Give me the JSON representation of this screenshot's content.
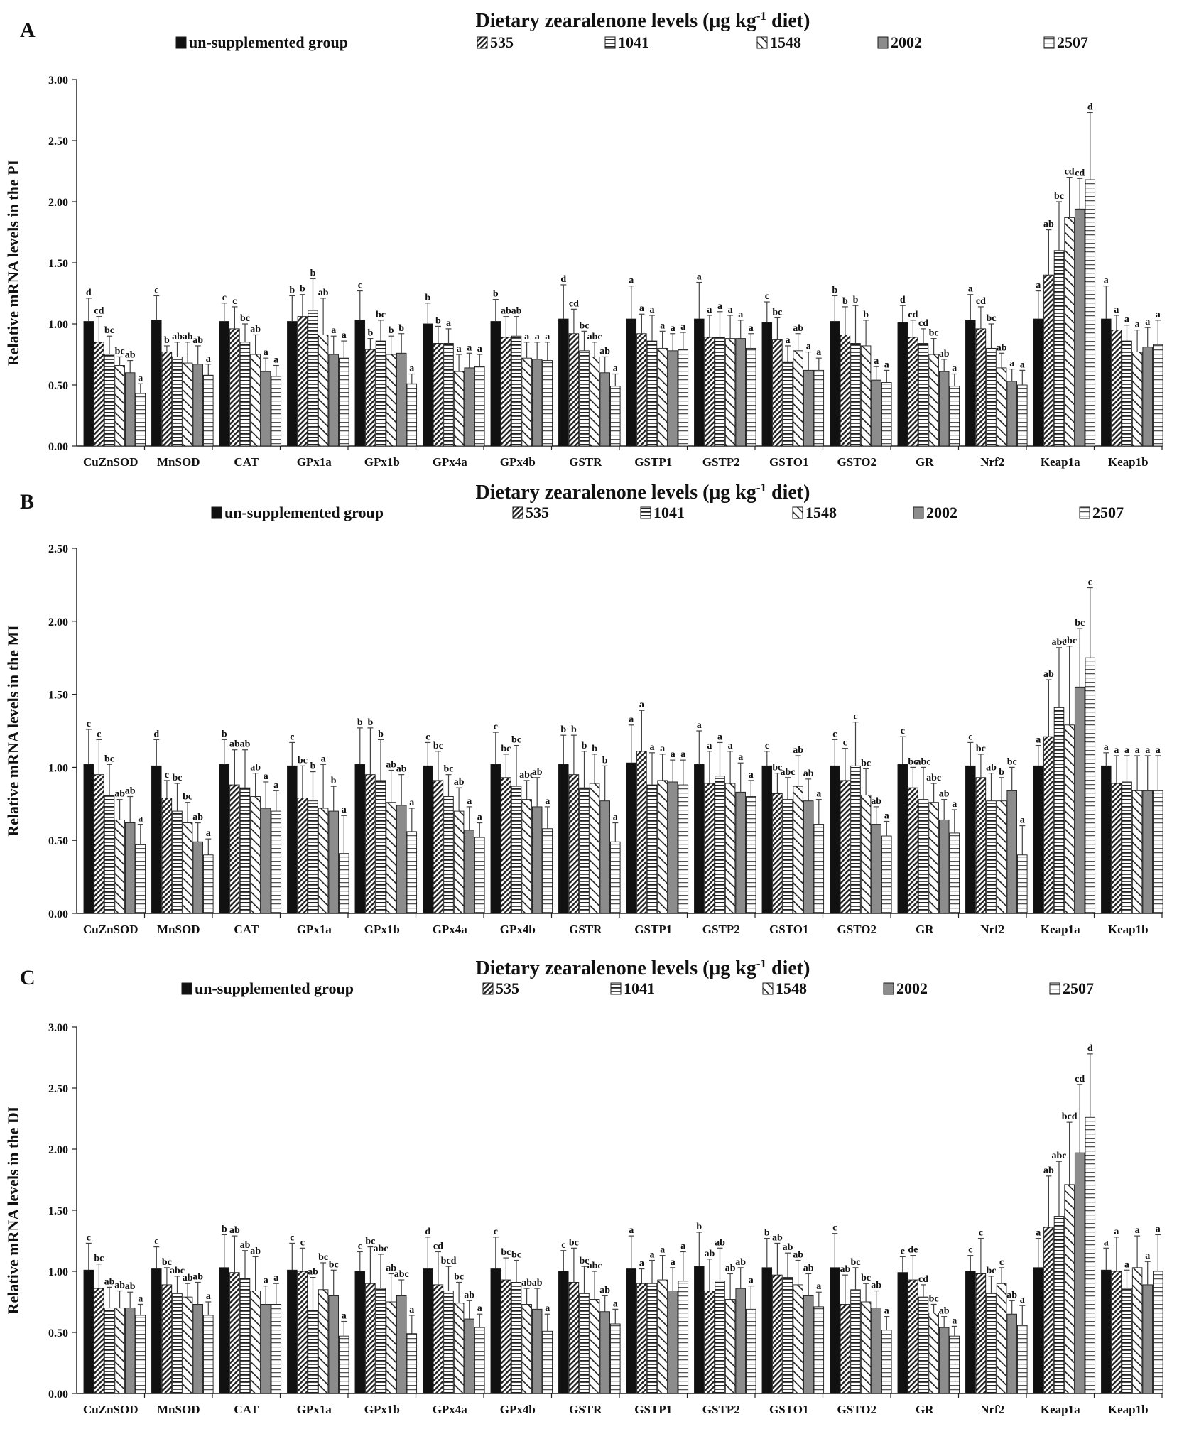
{
  "figure": {
    "series_names": [
      "un-supplemented group",
      "535",
      "1041",
      "1548",
      "2002",
      "2507"
    ],
    "colors": {
      "bar_outline": "#1a1a1a",
      "solid": "#111111",
      "gray": "#8c8c8c",
      "axis": "#222222",
      "error_bar": "#444444"
    }
  },
  "chart_data": [
    {
      "type": "bar",
      "panel_label": "A",
      "title": "Dietary zearalenone levels (μg kg",
      "title_sup": "-1",
      "title_tail": " diet)",
      "ylabel": "Relative  mRNA  levels  in  the  PI",
      "ylim": [
        0,
        3.0
      ],
      "ytick_labels": [
        "0.00",
        "0.50",
        "1.00",
        "1.50",
        "2.00",
        "2.50",
        "3.00"
      ],
      "categories": [
        "CuZnSOD",
        "MnSOD",
        "CAT",
        "GPx1a",
        "GPx1b",
        "GPx4a",
        "GPx4b",
        "GSTR",
        "GSTP1",
        "GSTP2",
        "GSTO1",
        "GSTO2",
        "GR",
        "Nrf2",
        "Keap1a",
        "Keap1b"
      ],
      "series": [
        {
          "name": "un-supplemented group",
          "values": [
            1.02,
            1.03,
            1.02,
            1.02,
            1.03,
            1.0,
            1.02,
            1.04,
            1.04,
            1.04,
            1.01,
            1.02,
            1.01,
            1.03,
            1.04,
            1.04
          ]
        },
        {
          "name": "535",
          "values": [
            0.85,
            0.77,
            0.96,
            1.06,
            0.79,
            0.84,
            0.89,
            0.92,
            0.92,
            0.89,
            0.87,
            0.91,
            0.89,
            0.96,
            1.4,
            0.95
          ]
        },
        {
          "name": "1041",
          "values": [
            0.75,
            0.73,
            0.85,
            1.11,
            0.86,
            0.84,
            0.9,
            0.78,
            0.86,
            0.89,
            0.69,
            0.84,
            0.84,
            0.8,
            1.6,
            0.86
          ]
        },
        {
          "name": "1548",
          "values": [
            0.66,
            0.68,
            0.75,
            0.91,
            0.75,
            0.61,
            0.72,
            0.73,
            0.8,
            0.88,
            0.78,
            0.82,
            0.75,
            0.64,
            1.87,
            0.77
          ]
        },
        {
          "name": "2002",
          "values": [
            0.6,
            0.67,
            0.61,
            0.75,
            0.76,
            0.64,
            0.71,
            0.6,
            0.78,
            0.88,
            0.62,
            0.54,
            0.61,
            0.53,
            1.94,
            0.81
          ]
        },
        {
          "name": "2507",
          "values": [
            0.43,
            0.58,
            0.57,
            0.72,
            0.51,
            0.65,
            0.7,
            0.49,
            0.79,
            0.8,
            0.62,
            0.52,
            0.49,
            0.5,
            2.18,
            0.83
          ]
        }
      ],
      "errors": [
        [
          0.19,
          0.2,
          0.15,
          0.21,
          0.24,
          0.17,
          0.18,
          0.28,
          0.27,
          0.3,
          0.17,
          0.21,
          0.14,
          0.21,
          0.23,
          0.27
        ],
        [
          0.21,
          0.05,
          0.18,
          0.18,
          0.09,
          0.14,
          0.17,
          0.2,
          0.16,
          0.18,
          0.18,
          0.23,
          0.14,
          0.18,
          0.37,
          0.12
        ],
        [
          0.15,
          0.12,
          0.15,
          0.26,
          0.17,
          0.12,
          0.16,
          0.16,
          0.21,
          0.21,
          0.13,
          0.31,
          0.12,
          0.2,
          0.4,
          0.13
        ],
        [
          0.07,
          0.17,
          0.16,
          0.3,
          0.15,
          0.14,
          0.13,
          0.12,
          0.14,
          0.19,
          0.14,
          0.21,
          0.13,
          0.12,
          0.33,
          0.18
        ],
        [
          0.1,
          0.15,
          0.11,
          0.15,
          0.16,
          0.12,
          0.14,
          0.13,
          0.14,
          0.15,
          0.15,
          0.11,
          0.1,
          0.1,
          0.25,
          0.16
        ],
        [
          0.08,
          0.09,
          0.09,
          0.14,
          0.08,
          0.1,
          0.15,
          0.1,
          0.14,
          0.12,
          0.1,
          0.1,
          0.1,
          0.12,
          0.55,
          0.2
        ]
      ],
      "letters": [
        [
          "d",
          "cd",
          "bc",
          "bc",
          "ab",
          "a"
        ],
        [
          "c",
          "b",
          "ab",
          "ab",
          "ab",
          "a"
        ],
        [
          "c",
          "c",
          "bc",
          "ab",
          "a",
          "a"
        ],
        [
          "b",
          "b",
          "b",
          "ab",
          "a",
          "a"
        ],
        [
          "c",
          "b",
          "bc",
          "b",
          "b",
          "a"
        ],
        [
          "b",
          "b",
          "a",
          "a",
          "a",
          "a"
        ],
        [
          "b",
          "ab",
          "ab",
          "a",
          "a",
          "a"
        ],
        [
          "d",
          "cd",
          "bc",
          "abc",
          "ab",
          "a"
        ],
        [
          "a",
          "a",
          "a",
          "a",
          "a",
          "a"
        ],
        [
          "a",
          "a",
          "a",
          "a",
          "a",
          "a"
        ],
        [
          "c",
          "bc",
          "a",
          "ab",
          "a",
          "a"
        ],
        [
          "b",
          "b",
          "b",
          "b",
          "a",
          "a"
        ],
        [
          "d",
          "cd",
          "cd",
          "bc",
          "ab",
          "a"
        ],
        [
          "a",
          "cd",
          "bc",
          "ab",
          "a",
          "a"
        ],
        [
          "a",
          "ab",
          "bc",
          "cd",
          "cd",
          "d"
        ],
        [
          "a",
          "a",
          "a",
          "a",
          "a",
          "a"
        ]
      ]
    },
    {
      "type": "bar",
      "panel_label": "B",
      "title": "Dietary zearalenone levels (μg kg",
      "title_sup": "-1",
      "title_tail": " diet)",
      "ylabel": "Relative  mRNA  levels  in  the  MI",
      "ylim": [
        0,
        2.5
      ],
      "ytick_labels": [
        "0.00",
        "0.50",
        "1.00",
        "1.50",
        "2.00",
        "2.50"
      ],
      "categories": [
        "CuZnSOD",
        "MnSOD",
        "CAT",
        "GPx1a",
        "GPx1b",
        "GPx4a",
        "GPx4b",
        "GSTR",
        "GSTP1",
        "GSTP2",
        "GSTO1",
        "GSTO2",
        "GR",
        "Nrf2",
        "Keap1a",
        "Keap1b"
      ],
      "series": [
        {
          "name": "un-supplemented group",
          "values": [
            1.02,
            1.01,
            1.02,
            1.01,
            1.02,
            1.01,
            1.02,
            1.02,
            1.03,
            1.02,
            1.01,
            1.01,
            1.02,
            1.01,
            1.01,
            1.01
          ]
        },
        {
          "name": "535",
          "values": [
            0.95,
            0.79,
            0.88,
            0.79,
            0.95,
            0.91,
            0.93,
            0.95,
            1.11,
            0.89,
            0.82,
            0.91,
            0.86,
            0.93,
            1.21,
            0.89
          ]
        },
        {
          "name": "1041",
          "values": [
            0.81,
            0.7,
            0.86,
            0.77,
            0.91,
            0.8,
            0.87,
            0.86,
            0.88,
            0.94,
            0.78,
            1.01,
            0.78,
            0.77,
            1.41,
            0.9
          ]
        },
        {
          "name": "1548",
          "values": [
            0.64,
            0.62,
            0.8,
            0.72,
            0.76,
            0.7,
            0.78,
            0.89,
            0.91,
            0.89,
            0.87,
            0.81,
            0.76,
            0.77,
            1.29,
            0.84
          ]
        },
        {
          "name": "2002",
          "values": [
            0.62,
            0.49,
            0.72,
            0.7,
            0.74,
            0.57,
            0.73,
            0.77,
            0.9,
            0.83,
            0.77,
            0.61,
            0.64,
            0.84,
            1.55,
            0.84
          ]
        },
        {
          "name": "2507",
          "values": [
            0.47,
            0.4,
            0.7,
            0.41,
            0.56,
            0.52,
            0.58,
            0.49,
            0.88,
            0.8,
            0.61,
            0.53,
            0.55,
            0.4,
            1.75,
            0.84
          ]
        }
      ],
      "errors": [
        [
          0.24,
          0.18,
          0.17,
          0.16,
          0.25,
          0.16,
          0.22,
          0.2,
          0.26,
          0.23,
          0.1,
          0.18,
          0.19,
          0.16,
          0.14,
          0.09
        ],
        [
          0.24,
          0.12,
          0.24,
          0.22,
          0.32,
          0.2,
          0.16,
          0.27,
          0.28,
          0.22,
          0.14,
          0.22,
          0.14,
          0.16,
          0.39,
          0.19
        ],
        [
          0.21,
          0.19,
          0.26,
          0.2,
          0.28,
          0.15,
          0.28,
          0.25,
          0.22,
          0.23,
          0.15,
          0.3,
          0.22,
          0.19,
          0.41,
          0.18
        ],
        [
          0.14,
          0.14,
          0.16,
          0.3,
          0.22,
          0.16,
          0.13,
          0.2,
          0.18,
          0.22,
          0.21,
          0.18,
          0.13,
          0.16,
          0.54,
          0.24
        ],
        [
          0.18,
          0.13,
          0.18,
          0.17,
          0.21,
          0.16,
          0.2,
          0.24,
          0.15,
          0.2,
          0.15,
          0.12,
          0.14,
          0.16,
          0.4,
          0.24
        ],
        [
          0.14,
          0.11,
          0.14,
          0.26,
          0.16,
          0.1,
          0.15,
          0.13,
          0.17,
          0.11,
          0.17,
          0.1,
          0.16,
          0.2,
          0.48,
          0.24
        ]
      ],
      "letters": [
        [
          "c",
          "c",
          "bc",
          "ab",
          "ab",
          "a"
        ],
        [
          "d",
          "c",
          "bc",
          "bc",
          "ab",
          "a"
        ],
        [
          "b",
          "ab",
          "ab",
          "ab",
          "a",
          "a"
        ],
        [
          "c",
          "bc",
          "b",
          "a",
          "b",
          "a"
        ],
        [
          "b",
          "b",
          "b",
          "ab",
          "ab",
          "a"
        ],
        [
          "c",
          "bc",
          "bc",
          "ab",
          "a",
          "a"
        ],
        [
          "c",
          "bc",
          "bc",
          "abc",
          "ab",
          "a"
        ],
        [
          "b",
          "b",
          "b",
          "b",
          "b",
          "a"
        ],
        [
          "a",
          "a",
          "a",
          "a",
          "a",
          "a"
        ],
        [
          "a",
          "a",
          "a",
          "a",
          "a",
          "a"
        ],
        [
          "c",
          "bc",
          "abc",
          "ab",
          "ab",
          "a"
        ],
        [
          "c",
          "c",
          "c",
          "bc",
          "ab",
          "a"
        ],
        [
          "c",
          "bc",
          "abc",
          "abc",
          "ab",
          "a"
        ],
        [
          "c",
          "bc",
          "ab",
          "b",
          "bc",
          "a"
        ],
        [
          "a",
          "ab",
          "abc",
          "abc",
          "bc",
          "c"
        ],
        [
          "a",
          "a",
          "a",
          "a",
          "a",
          "a"
        ]
      ]
    },
    {
      "type": "bar",
      "panel_label": "C",
      "title": "Dietary zearalenone levels (μg kg",
      "title_sup": "-1",
      "title_tail": " diet)",
      "ylabel": "Relative  mRNA  levels  in  the  DI",
      "ylim": [
        0,
        3.0
      ],
      "ytick_labels": [
        "0.00",
        "0.50",
        "1.00",
        "1.50",
        "2.00",
        "2.50",
        "3.00"
      ],
      "categories": [
        "CuZnSOD",
        "MnSOD",
        "CAT",
        "GPx1a",
        "GPx1b",
        "GPx4a",
        "GPx4b",
        "GSTR",
        "GSTP1",
        "GSTP2",
        "GSTO1",
        "GSTO2",
        "GR",
        "Nrf2",
        "Keap1a",
        "Keap1b"
      ],
      "series": [
        {
          "name": "un-supplemented group",
          "values": [
            1.01,
            1.02,
            1.03,
            1.01,
            1.0,
            1.02,
            1.02,
            1.0,
            1.02,
            1.04,
            1.03,
            1.03,
            0.99,
            1.0,
            1.03,
            1.01
          ]
        },
        {
          "name": "535",
          "values": [
            0.86,
            0.89,
            0.99,
            1.0,
            0.9,
            0.89,
            0.93,
            0.91,
            0.9,
            0.84,
            0.97,
            0.73,
            0.93,
            0.98,
            1.36,
            1.0
          ]
        },
        {
          "name": "1041",
          "values": [
            0.7,
            0.82,
            0.94,
            0.68,
            0.86,
            0.84,
            0.91,
            0.82,
            0.9,
            0.92,
            0.95,
            0.85,
            0.79,
            0.82,
            1.45,
            0.86
          ]
        },
        {
          "name": "1548",
          "values": [
            0.7,
            0.79,
            0.84,
            0.85,
            0.75,
            0.74,
            0.73,
            0.77,
            0.93,
            0.77,
            0.89,
            0.75,
            0.66,
            0.9,
            1.71,
            1.03
          ]
        },
        {
          "name": "2002",
          "values": [
            0.7,
            0.73,
            0.73,
            0.8,
            0.8,
            0.61,
            0.69,
            0.67,
            0.84,
            0.86,
            0.8,
            0.7,
            0.54,
            0.65,
            1.97,
            0.89
          ]
        },
        {
          "name": "2507",
          "values": [
            0.64,
            0.64,
            0.73,
            0.47,
            0.49,
            0.54,
            0.51,
            0.57,
            0.92,
            0.69,
            0.71,
            0.52,
            0.47,
            0.56,
            2.26,
            1.0
          ]
        }
      ],
      "errors": [
        [
          0.22,
          0.18,
          0.27,
          0.22,
          0.16,
          0.26,
          0.26,
          0.17,
          0.27,
          0.28,
          0.24,
          0.28,
          0.13,
          0.13,
          0.24,
          0.18
        ],
        [
          0.2,
          0.14,
          0.3,
          0.19,
          0.3,
          0.27,
          0.18,
          0.28,
          0.12,
          0.26,
          0.26,
          0.24,
          0.2,
          0.29,
          0.42,
          0.28
        ],
        [
          0.17,
          0.14,
          0.23,
          0.27,
          0.28,
          0.2,
          0.18,
          0.22,
          0.19,
          0.27,
          0.2,
          0.18,
          0.1,
          0.14,
          0.45,
          0.15
        ],
        [
          0.14,
          0.11,
          0.28,
          0.22,
          0.23,
          0.17,
          0.13,
          0.23,
          0.2,
          0.21,
          0.2,
          0.15,
          0.07,
          0.13,
          0.51,
          0.26
        ],
        [
          0.13,
          0.18,
          0.15,
          0.21,
          0.13,
          0.15,
          0.17,
          0.13,
          0.19,
          0.17,
          0.18,
          0.14,
          0.09,
          0.11,
          0.56,
          0.19
        ],
        [
          0.09,
          0.11,
          0.17,
          0.12,
          0.15,
          0.11,
          0.14,
          0.12,
          0.24,
          0.19,
          0.12,
          0.11,
          0.08,
          0.16,
          0.52,
          0.3
        ]
      ],
      "letters": [
        [
          "c",
          "bc",
          "ab",
          "ab",
          "ab",
          "a"
        ],
        [
          "c",
          "bc",
          "abc",
          "ab",
          "ab",
          "a"
        ],
        [
          "b",
          "ab",
          "ab",
          "ab",
          "a",
          "a"
        ],
        [
          "c",
          "c",
          "ab",
          "bc",
          "bc",
          "a"
        ],
        [
          "c",
          "bc",
          "abc",
          "ab",
          "abc",
          "a"
        ],
        [
          "d",
          "cd",
          "bcd",
          "bc",
          "ab",
          "a"
        ],
        [
          "c",
          "bc",
          "bc",
          "ab",
          "ab",
          "a"
        ],
        [
          "c",
          "bc",
          "bc",
          "abc",
          "ab",
          "a"
        ],
        [
          "a",
          "a",
          "a",
          "a",
          "a",
          "a"
        ],
        [
          "b",
          "ab",
          "ab",
          "ab",
          "ab",
          "a"
        ],
        [
          "b",
          "ab",
          "ab",
          "ab",
          "ab",
          "a"
        ],
        [
          "c",
          "ab",
          "bc",
          "bc",
          "ab",
          "a"
        ],
        [
          "e",
          "de",
          "cd",
          "bc",
          "ab",
          "a"
        ],
        [
          "c",
          "c",
          "bc",
          "c",
          "ab",
          "a"
        ],
        [
          "a",
          "ab",
          "abc",
          "bcd",
          "cd",
          "d"
        ],
        [
          "a",
          "a",
          "a",
          "a",
          "a",
          "a"
        ]
      ]
    }
  ]
}
